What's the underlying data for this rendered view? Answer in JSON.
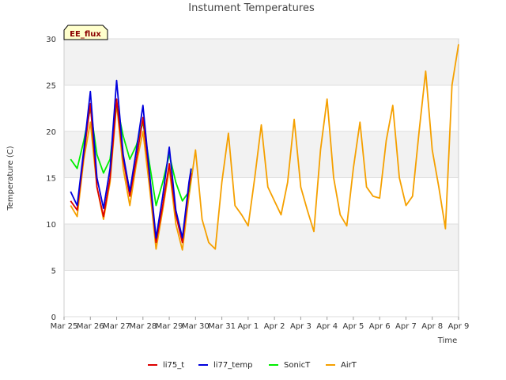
{
  "chart_data": {
    "type": "line",
    "title": "Instument Temperatures",
    "xlabel": "Time",
    "ylabel": "Temperature (C)",
    "badge": "EE_flux",
    "xlim": [
      "2024-03-25",
      "2024-04-09"
    ],
    "ylim": [
      0,
      30
    ],
    "grid": true,
    "legend_position": "bottom",
    "x_ticks": [
      "Mar 25",
      "Mar 26",
      "Mar 27",
      "Mar 28",
      "Mar 29",
      "Mar 30",
      "Mar 31",
      "Apr 1",
      "Apr 2",
      "Apr 3",
      "Apr 4",
      "Apr 5",
      "Apr 6",
      "Apr 7",
      "Apr 8",
      "Apr 9"
    ],
    "y_ticks": [
      0,
      5,
      10,
      15,
      20,
      25,
      30
    ],
    "series": [
      {
        "name": "li75_t",
        "color": "#dd0000",
        "points": [
          [
            "2024-03-25 06:00",
            12.5
          ],
          [
            "2024-03-25 12:00",
            11.5
          ],
          [
            "2024-03-25 18:00",
            17.5
          ],
          [
            "2024-03-26 00:00",
            23.0
          ],
          [
            "2024-03-26 06:00",
            14.0
          ],
          [
            "2024-03-26 12:00",
            10.8
          ],
          [
            "2024-03-26 18:00",
            15.0
          ],
          [
            "2024-03-27 00:00",
            23.5
          ],
          [
            "2024-03-27 06:00",
            17.0
          ],
          [
            "2024-03-27 12:00",
            13.0
          ],
          [
            "2024-03-27 18:00",
            17.0
          ],
          [
            "2024-03-28 00:00",
            21.5
          ],
          [
            "2024-03-28 06:00",
            15.0
          ],
          [
            "2024-03-28 12:00",
            8.0
          ],
          [
            "2024-03-28 18:00",
            12.0
          ],
          [
            "2024-03-29 00:00",
            16.5
          ],
          [
            "2024-03-29 06:00",
            11.0
          ],
          [
            "2024-03-29 12:00",
            8.0
          ],
          [
            "2024-03-29 18:00",
            14.0
          ],
          [
            "2024-03-29 20:00",
            15.5
          ]
        ]
      },
      {
        "name": "li77_temp",
        "color": "#0000dd",
        "points": [
          [
            "2024-03-25 06:00",
            13.5
          ],
          [
            "2024-03-25 12:00",
            12.0
          ],
          [
            "2024-03-25 18:00",
            18.0
          ],
          [
            "2024-03-26 00:00",
            24.3
          ],
          [
            "2024-03-26 06:00",
            15.0
          ],
          [
            "2024-03-26 12:00",
            11.7
          ],
          [
            "2024-03-26 18:00",
            16.0
          ],
          [
            "2024-03-27 00:00",
            25.5
          ],
          [
            "2024-03-27 06:00",
            17.5
          ],
          [
            "2024-03-27 12:00",
            13.5
          ],
          [
            "2024-03-27 18:00",
            18.0
          ],
          [
            "2024-03-28 00:00",
            22.8
          ],
          [
            "2024-03-28 06:00",
            15.5
          ],
          [
            "2024-03-28 12:00",
            8.5
          ],
          [
            "2024-03-28 18:00",
            13.0
          ],
          [
            "2024-03-29 00:00",
            18.3
          ],
          [
            "2024-03-29 06:00",
            11.5
          ],
          [
            "2024-03-29 12:00",
            8.5
          ],
          [
            "2024-03-29 18:00",
            14.5
          ],
          [
            "2024-03-29 20:00",
            16.0
          ]
        ]
      },
      {
        "name": "SonicT",
        "color": "#00ee00",
        "points": [
          [
            "2024-03-25 06:00",
            17.0
          ],
          [
            "2024-03-25 12:00",
            16.0
          ],
          [
            "2024-03-25 18:00",
            19.0
          ],
          [
            "2024-03-26 00:00",
            22.5
          ],
          [
            "2024-03-26 06:00",
            17.5
          ],
          [
            "2024-03-26 12:00",
            15.5
          ],
          [
            "2024-03-26 18:00",
            17.0
          ],
          [
            "2024-03-27 00:00",
            23.0
          ],
          [
            "2024-03-27 06:00",
            19.5
          ],
          [
            "2024-03-27 12:00",
            17.0
          ],
          [
            "2024-03-27 18:00",
            18.5
          ],
          [
            "2024-03-28 00:00",
            21.0
          ],
          [
            "2024-03-28 06:00",
            16.5
          ],
          [
            "2024-03-28 12:00",
            12.0
          ],
          [
            "2024-03-28 18:00",
            14.5
          ],
          [
            "2024-03-29 00:00",
            17.5
          ],
          [
            "2024-03-29 06:00",
            14.5
          ],
          [
            "2024-03-29 12:00",
            12.5
          ],
          [
            "2024-03-29 18:00",
            13.5
          ],
          [
            "2024-03-29 20:00",
            16.0
          ]
        ]
      },
      {
        "name": "AirT",
        "color": "#f5a000",
        "points": [
          [
            "2024-03-25 06:00",
            12.0
          ],
          [
            "2024-03-25 12:00",
            10.8
          ],
          [
            "2024-03-25 18:00",
            17.0
          ],
          [
            "2024-03-26 00:00",
            21.0
          ],
          [
            "2024-03-26 06:00",
            14.0
          ],
          [
            "2024-03-26 12:00",
            10.5
          ],
          [
            "2024-03-26 18:00",
            14.5
          ],
          [
            "2024-03-27 00:00",
            23.0
          ],
          [
            "2024-03-27 06:00",
            16.0
          ],
          [
            "2024-03-27 12:00",
            12.0
          ],
          [
            "2024-03-27 18:00",
            16.5
          ],
          [
            "2024-03-28 00:00",
            20.0
          ],
          [
            "2024-03-28 06:00",
            14.0
          ],
          [
            "2024-03-28 12:00",
            7.3
          ],
          [
            "2024-03-28 18:00",
            11.5
          ],
          [
            "2024-03-29 00:00",
            16.0
          ],
          [
            "2024-03-29 06:00",
            10.0
          ],
          [
            "2024-03-29 12:00",
            7.2
          ],
          [
            "2024-03-29 18:00",
            13.0
          ],
          [
            "2024-03-30 00:00",
            18.0
          ],
          [
            "2024-03-30 06:00",
            10.5
          ],
          [
            "2024-03-30 12:00",
            8.0
          ],
          [
            "2024-03-30 18:00",
            7.3
          ],
          [
            "2024-03-31 00:00",
            14.5
          ],
          [
            "2024-03-31 06:00",
            19.8
          ],
          [
            "2024-03-31 12:00",
            12.0
          ],
          [
            "2024-03-31 18:00",
            11.0
          ],
          [
            "2024-04-01 00:00",
            9.8
          ],
          [
            "2024-04-01 06:00",
            15.0
          ],
          [
            "2024-04-01 12:00",
            20.7
          ],
          [
            "2024-04-01 18:00",
            14.0
          ],
          [
            "2024-04-02 00:00",
            12.5
          ],
          [
            "2024-04-02 06:00",
            11.0
          ],
          [
            "2024-04-02 12:00",
            14.5
          ],
          [
            "2024-04-02 18:00",
            21.3
          ],
          [
            "2024-04-03 00:00",
            14.0
          ],
          [
            "2024-04-03 06:00",
            11.5
          ],
          [
            "2024-04-03 12:00",
            9.2
          ],
          [
            "2024-04-03 18:00",
            18.0
          ],
          [
            "2024-04-04 00:00",
            23.5
          ],
          [
            "2024-04-04 06:00",
            15.0
          ],
          [
            "2024-04-04 12:00",
            11.0
          ],
          [
            "2024-04-04 18:00",
            9.8
          ],
          [
            "2024-04-05 00:00",
            16.0
          ],
          [
            "2024-04-05 06:00",
            21.0
          ],
          [
            "2024-04-05 12:00",
            14.0
          ],
          [
            "2024-04-05 18:00",
            13.0
          ],
          [
            "2024-04-06 00:00",
            12.8
          ],
          [
            "2024-04-06 06:00",
            19.0
          ],
          [
            "2024-04-06 12:00",
            22.8
          ],
          [
            "2024-04-06 18:00",
            15.0
          ],
          [
            "2024-04-07 00:00",
            12.0
          ],
          [
            "2024-04-07 06:00",
            13.0
          ],
          [
            "2024-04-07 12:00",
            20.0
          ],
          [
            "2024-04-07 18:00",
            26.5
          ],
          [
            "2024-04-08 00:00",
            18.0
          ],
          [
            "2024-04-08 06:00",
            14.0
          ],
          [
            "2024-04-08 12:00",
            9.5
          ],
          [
            "2024-04-08 18:00",
            25.0
          ],
          [
            "2024-04-09 00:00",
            29.4
          ]
        ]
      }
    ]
  }
}
